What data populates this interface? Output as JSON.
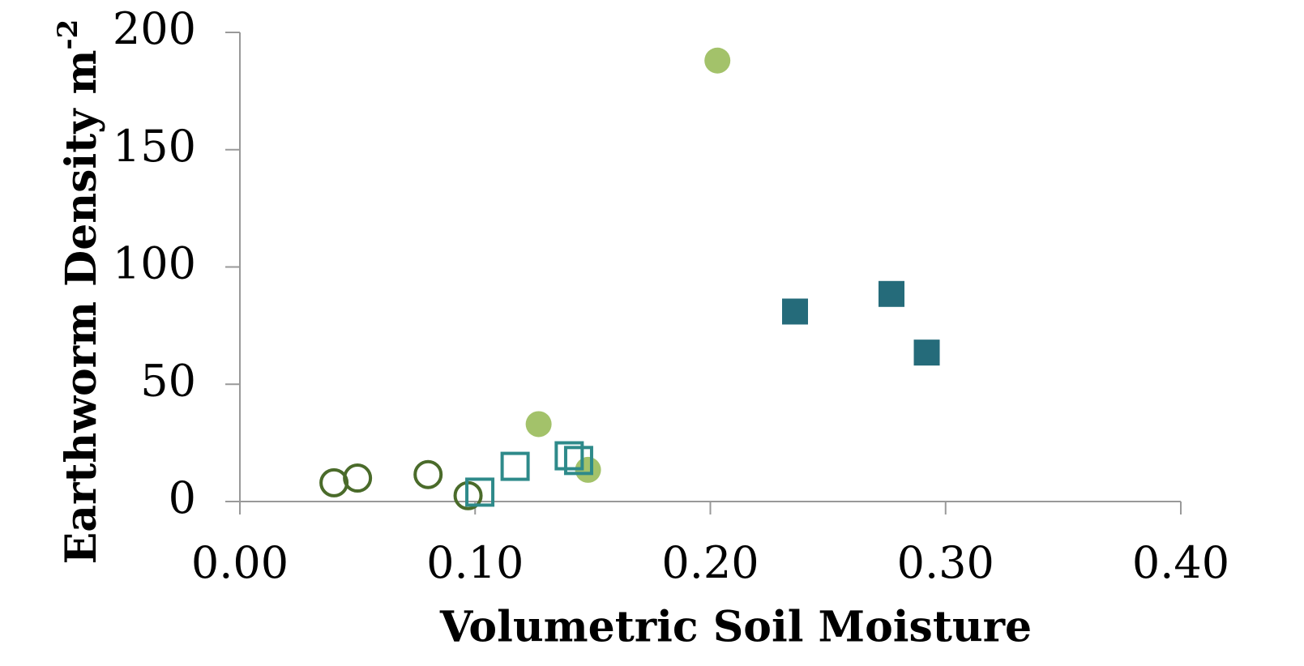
{
  "chart_data": {
    "type": "scatter",
    "x_label": "Volumetric Soil Moisture",
    "y_label": "Earthworm Density m",
    "y_label_superscript": "-2",
    "xlim": [
      0,
      0.4
    ],
    "ylim": [
      0,
      200
    ],
    "xticks": [
      {
        "value": 0,
        "label": "0.00"
      },
      {
        "value": 0.1,
        "label": "0.10"
      },
      {
        "value": 0.2,
        "label": "0.20"
      },
      {
        "value": 0.3,
        "label": "0.30"
      },
      {
        "value": 0.4,
        "label": "0.40"
      }
    ],
    "yticks": [
      0,
      50,
      100,
      150,
      200
    ],
    "grid": false,
    "series": [
      {
        "color": "#4a6b2a",
        "marker": "circle",
        "filled": false,
        "x": [
          0.04,
          0.05,
          0.08,
          0.097
        ],
        "values": [
          8,
          10,
          11.5,
          2.5
        ]
      },
      {
        "color": "#a3c26a",
        "marker": "circle",
        "filled": true,
        "x": [
          0.203,
          0.127,
          0.148
        ],
        "values": [
          188,
          33,
          13.5
        ]
      },
      {
        "color": "#2e8a8a",
        "marker": "square",
        "filled": false,
        "x": [
          0.102,
          0.117,
          0.14,
          0.144
        ],
        "values": [
          4,
          15,
          19.5,
          17.5
        ]
      },
      {
        "color": "#256b7a",
        "marker": "square",
        "filled": true,
        "x": [
          0.236,
          0.277,
          0.292
        ],
        "values": [
          81,
          88.5,
          63.5
        ]
      }
    ]
  }
}
